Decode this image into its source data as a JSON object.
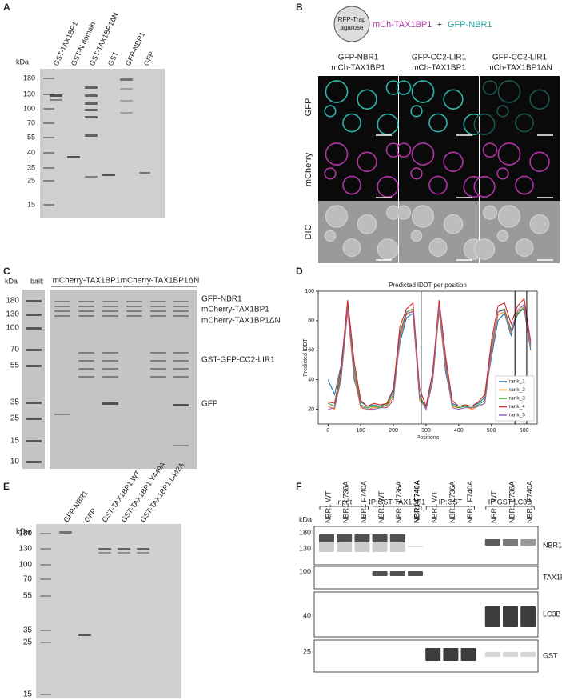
{
  "panels": {
    "A": {
      "label": "A",
      "unit": "kDa",
      "markers": [
        180,
        130,
        100,
        70,
        55,
        40,
        35,
        25,
        15
      ],
      "lanes": [
        "GST-TAX1BP1",
        "GST-N domain",
        "GST-TAX1BP1ΔN",
        "GST",
        "GFP-NBR1",
        "GFP"
      ]
    },
    "B": {
      "label": "B",
      "bead": [
        "RFP-Trap",
        "agarose"
      ],
      "bait": "mCh-TAX1BP1",
      "plus": "+",
      "prey": "GFP-NBR1",
      "columns": [
        [
          "GFP-NBR1",
          "mCh-TAX1BP1"
        ],
        [
          "GFP-CC2-LIR1",
          "mCh-TAX1BP1"
        ],
        [
          "GFP-CC2-LIR1",
          "mCh-TAX1BP1ΔN"
        ]
      ],
      "rows": [
        "GFP",
        "mCherry",
        "DIC"
      ]
    },
    "C": {
      "label": "C",
      "unit": "kDa",
      "bait": "bait:",
      "groups": [
        "mCherry-TAX1BP1",
        "mCherry-TAX1BP1ΔN"
      ],
      "markers": [
        180,
        130,
        100,
        70,
        55,
        35,
        25,
        15,
        10
      ],
      "bands": [
        "GFP-NBR1",
        "mCherry-TAX1BP1",
        "mCherry-TAX1BP1ΔN",
        "GST-GFP-CC2-LIR1",
        "GFP"
      ]
    },
    "D": {
      "label": "D"
    },
    "E": {
      "label": "E",
      "unit": "kDa",
      "markers": [
        180,
        130,
        100,
        70,
        55,
        35,
        25,
        15
      ],
      "lanes": [
        "GFP-NBR1",
        "GFP",
        "GST-TAX1BP1 WT",
        "GST-TAX1BP1 Y449A",
        "GST-TAX1BP1 L442A"
      ]
    },
    "F": {
      "label": "F",
      "unit": "kDa",
      "groups": [
        "Input",
        "IP:GST-TAX1BP1",
        "IP:GST",
        "IP:GST-LC3B"
      ],
      "lanes": [
        "NBR1 WT",
        "NBR1 L736A",
        "NBR1 F740A"
      ],
      "blots": [
        {
          "name": "NBR1",
          "markers": [
            180,
            130
          ]
        },
        {
          "name": "TAX1BP1",
          "markers": [
            100
          ]
        },
        {
          "name": "LC3B",
          "markers": [
            40
          ]
        },
        {
          "name": "GST",
          "markers": [
            25
          ]
        }
      ]
    }
  },
  "chart_data": {
    "type": "line",
    "title": "Predicted lDDT per position",
    "x_label": "Positions",
    "y_label": "Predicted lDDT",
    "x": [
      0,
      20,
      40,
      60,
      80,
      100,
      120,
      140,
      160,
      180,
      200,
      220,
      240,
      260,
      280,
      300,
      320,
      340,
      360,
      380,
      400,
      420,
      440,
      460,
      480,
      500,
      520,
      540,
      560,
      580,
      600,
      620
    ],
    "series": [
      {
        "name": "rank_1",
        "color": "#1f77b4",
        "values": [
          40,
          30,
          50,
          88,
          40,
          25,
          22,
          23,
          22,
          24,
          32,
          65,
          82,
          85,
          28,
          22,
          45,
          88,
          45,
          24,
          22,
          23,
          22,
          24,
          28,
          55,
          80,
          85,
          70,
          85,
          88,
          60
        ]
      },
      {
        "name": "rank_2",
        "color": "#ff7f0e",
        "values": [
          22,
          20,
          42,
          86,
          42,
          21,
          20,
          21,
          22,
          22,
          28,
          68,
          84,
          87,
          26,
          21,
          38,
          86,
          48,
          22,
          21,
          22,
          20,
          22,
          24,
          58,
          84,
          86,
          72,
          86,
          89,
          62
        ]
      },
      {
        "name": "rank_3",
        "color": "#2ca02c",
        "values": [
          24,
          22,
          44,
          90,
          48,
          23,
          21,
          22,
          21,
          23,
          30,
          72,
          86,
          88,
          30,
          20,
          40,
          88,
          52,
          23,
          21,
          22,
          21,
          23,
          26,
          62,
          86,
          88,
          74,
          84,
          90,
          64
        ]
      },
      {
        "name": "rank_4",
        "color": "#d62728",
        "values": [
          25,
          24,
          48,
          94,
          52,
          26,
          22,
          24,
          23,
          24,
          34,
          76,
          88,
          92,
          34,
          22,
          44,
          94,
          56,
          26,
          22,
          23,
          22,
          25,
          30,
          66,
          90,
          92,
          78,
          90,
          95,
          66
        ]
      },
      {
        "name": "rank_5",
        "color": "#9467bd",
        "values": [
          20,
          21,
          40,
          88,
          44,
          22,
          20,
          20,
          21,
          21,
          26,
          70,
          85,
          86,
          28,
          20,
          38,
          90,
          50,
          21,
          20,
          21,
          21,
          22,
          24,
          60,
          86,
          87,
          73,
          87,
          91,
          63
        ]
      }
    ],
    "vlines": [
      285,
      572,
      608
    ],
    "xlim": [
      -30,
      640
    ],
    "ylim": [
      10,
      100
    ],
    "xticks": [
      0,
      100,
      200,
      300,
      400,
      500,
      600
    ],
    "yticks": [
      20,
      40,
      60,
      80,
      100
    ],
    "grid": false,
    "legend": "lower right"
  }
}
